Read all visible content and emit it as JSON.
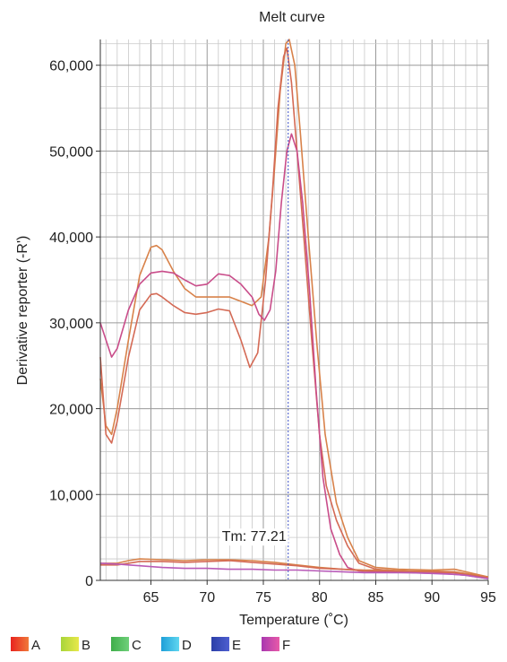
{
  "chart_data": {
    "type": "line",
    "title": "Melt curve",
    "xlabel": "Temperature (˚C)",
    "ylabel": "Derivative reporter (-R')",
    "xlim": [
      60.5,
      95
    ],
    "ylim": [
      0,
      63000
    ],
    "x_ticks": [
      65,
      70,
      75,
      80,
      85,
      90,
      95
    ],
    "x_tick_labels": [
      "65",
      "70",
      "75",
      "80",
      "85",
      "90",
      "95"
    ],
    "y_ticks": [
      0,
      10000,
      20000,
      30000,
      40000,
      50000,
      60000
    ],
    "y_tick_labels": [
      "0",
      "10,000",
      "20,000",
      "30,000",
      "40,000",
      "50,000",
      "60,000"
    ],
    "grid": true,
    "marker_line": {
      "x": 77.21,
      "label": "Tm: 77.21",
      "label_y": 5200,
      "color": "#3b4fc4"
    },
    "legend": {
      "placement": "bottom-left",
      "items": [
        {
          "label": "A",
          "color_from": "#e8231f",
          "color_to": "#f07a3a"
        },
        {
          "label": "B",
          "color_from": "#a8d53a",
          "color_to": "#e8e84a"
        },
        {
          "label": "C",
          "color_from": "#3fae4a",
          "color_to": "#6fd07a"
        },
        {
          "label": "D",
          "color_from": "#1e9fd8",
          "color_to": "#5fd6f0"
        },
        {
          "label": "E",
          "color_from": "#2b3fa8",
          "color_to": "#4e5fd0"
        },
        {
          "label": "F",
          "color_from": "#a838b0",
          "color_to": "#e85aa8"
        }
      ]
    },
    "series": [
      {
        "color": "#d8824a",
        "points": [
          [
            60.5,
            23500
          ],
          [
            61,
            18000
          ],
          [
            61.5,
            17000
          ],
          [
            62,
            20000
          ],
          [
            63,
            28000
          ],
          [
            64,
            35500
          ],
          [
            65,
            38800
          ],
          [
            65.5,
            39000
          ],
          [
            66,
            38500
          ],
          [
            67,
            36000
          ],
          [
            68,
            34000
          ],
          [
            69,
            33000
          ],
          [
            70,
            33000
          ],
          [
            71,
            33000
          ],
          [
            72,
            33000
          ],
          [
            73,
            32500
          ],
          [
            74,
            32000
          ],
          [
            74.8,
            33000
          ],
          [
            75.5,
            40000
          ],
          [
            76,
            48000
          ],
          [
            76.5,
            57000
          ],
          [
            77,
            62500
          ],
          [
            77.3,
            63000
          ],
          [
            77.8,
            60000
          ],
          [
            78.3,
            52000
          ],
          [
            79,
            40000
          ],
          [
            79.8,
            27000
          ],
          [
            80.5,
            17000
          ],
          [
            81.5,
            9000
          ],
          [
            82.5,
            5000
          ],
          [
            83.5,
            2300
          ],
          [
            85,
            1500
          ],
          [
            87,
            1300
          ],
          [
            90,
            1200
          ],
          [
            92,
            1300
          ],
          [
            93,
            1000
          ],
          [
            94,
            700
          ],
          [
            95,
            400
          ]
        ]
      },
      {
        "color": "#d46a55",
        "points": [
          [
            60.5,
            26000
          ],
          [
            61,
            17000
          ],
          [
            61.5,
            16000
          ],
          [
            62,
            18500
          ],
          [
            63,
            26000
          ],
          [
            64,
            31500
          ],
          [
            65,
            33300
          ],
          [
            65.5,
            33400
          ],
          [
            66,
            33000
          ],
          [
            67,
            32000
          ],
          [
            68,
            31200
          ],
          [
            69,
            31000
          ],
          [
            70,
            31200
          ],
          [
            71,
            31600
          ],
          [
            72,
            31400
          ],
          [
            73,
            28000
          ],
          [
            73.8,
            24800
          ],
          [
            74.5,
            26500
          ],
          [
            75.2,
            35000
          ],
          [
            75.8,
            45000
          ],
          [
            76.3,
            55000
          ],
          [
            76.8,
            61000
          ],
          [
            77.1,
            62000
          ],
          [
            77.5,
            58000
          ],
          [
            78,
            50000
          ],
          [
            78.6,
            40000
          ],
          [
            79.3,
            28000
          ],
          [
            80,
            17000
          ],
          [
            80.6,
            11000
          ],
          [
            81.5,
            7000
          ],
          [
            82.5,
            4000
          ],
          [
            83.5,
            2000
          ],
          [
            85,
            1300
          ],
          [
            87,
            1100
          ],
          [
            90,
            1000
          ],
          [
            92,
            900
          ],
          [
            93,
            700
          ],
          [
            94,
            500
          ],
          [
            95,
            300
          ]
        ]
      },
      {
        "color": "#c94d8a",
        "points": [
          [
            60.5,
            30000
          ],
          [
            61,
            28000
          ],
          [
            61.5,
            26000
          ],
          [
            62,
            27000
          ],
          [
            63,
            31500
          ],
          [
            64,
            34500
          ],
          [
            65,
            35800
          ],
          [
            66,
            36000
          ],
          [
            67,
            35800
          ],
          [
            68,
            35000
          ],
          [
            69,
            34300
          ],
          [
            70,
            34500
          ],
          [
            71,
            35700
          ],
          [
            72,
            35500
          ],
          [
            73,
            34500
          ],
          [
            74,
            33000
          ],
          [
            74.6,
            31000
          ],
          [
            75.1,
            30300
          ],
          [
            75.6,
            31500
          ],
          [
            76.1,
            36000
          ],
          [
            76.6,
            44000
          ],
          [
            77.1,
            50000
          ],
          [
            77.5,
            52000
          ],
          [
            78,
            50000
          ],
          [
            78.5,
            44000
          ],
          [
            79.1,
            34000
          ],
          [
            79.7,
            22000
          ],
          [
            80.3,
            12000
          ],
          [
            81,
            6000
          ],
          [
            81.8,
            3000
          ],
          [
            82.5,
            1500
          ],
          [
            83.5,
            1100
          ],
          [
            85,
            1000
          ],
          [
            88,
            900
          ],
          [
            91,
            800
          ],
          [
            93,
            600
          ],
          [
            94,
            400
          ],
          [
            95,
            200
          ]
        ]
      },
      {
        "color": "#d8824a",
        "points": [
          [
            60.5,
            2000
          ],
          [
            62,
            2000
          ],
          [
            63,
            2300
          ],
          [
            64,
            2500
          ],
          [
            66,
            2400
          ],
          [
            68,
            2300
          ],
          [
            70,
            2400
          ],
          [
            72,
            2400
          ],
          [
            74,
            2300
          ],
          [
            76,
            2100
          ],
          [
            78,
            1800
          ],
          [
            80,
            1500
          ],
          [
            82,
            1300
          ],
          [
            84,
            1200
          ],
          [
            86,
            1200
          ],
          [
            88,
            1100
          ],
          [
            90,
            1100
          ],
          [
            92,
            1000
          ],
          [
            93,
            800
          ],
          [
            94,
            600
          ],
          [
            95,
            400
          ]
        ]
      },
      {
        "color": "#d46a55",
        "points": [
          [
            60.5,
            1800
          ],
          [
            62,
            1800
          ],
          [
            63,
            2000
          ],
          [
            64,
            2200
          ],
          [
            66,
            2200
          ],
          [
            68,
            2100
          ],
          [
            70,
            2200
          ],
          [
            72,
            2300
          ],
          [
            74,
            2100
          ],
          [
            76,
            1900
          ],
          [
            78,
            1700
          ],
          [
            80,
            1400
          ],
          [
            82,
            1300
          ],
          [
            84,
            1100
          ],
          [
            86,
            1100
          ],
          [
            88,
            1000
          ],
          [
            90,
            1000
          ],
          [
            92,
            900
          ],
          [
            93,
            700
          ],
          [
            94,
            500
          ],
          [
            95,
            300
          ]
        ]
      },
      {
        "color": "#b85ab8",
        "points": [
          [
            60.5,
            2000
          ],
          [
            62,
            1900
          ],
          [
            63,
            1800
          ],
          [
            64,
            1700
          ],
          [
            66,
            1500
          ],
          [
            68,
            1400
          ],
          [
            70,
            1400
          ],
          [
            72,
            1300
          ],
          [
            74,
            1300
          ],
          [
            76,
            1200
          ],
          [
            78,
            1200
          ],
          [
            80,
            1100
          ],
          [
            82,
            1000
          ],
          [
            84,
            900
          ],
          [
            86,
            900
          ],
          [
            88,
            900
          ],
          [
            90,
            800
          ],
          [
            92,
            700
          ],
          [
            93,
            600
          ],
          [
            94,
            400
          ],
          [
            95,
            200
          ]
        ]
      }
    ]
  }
}
